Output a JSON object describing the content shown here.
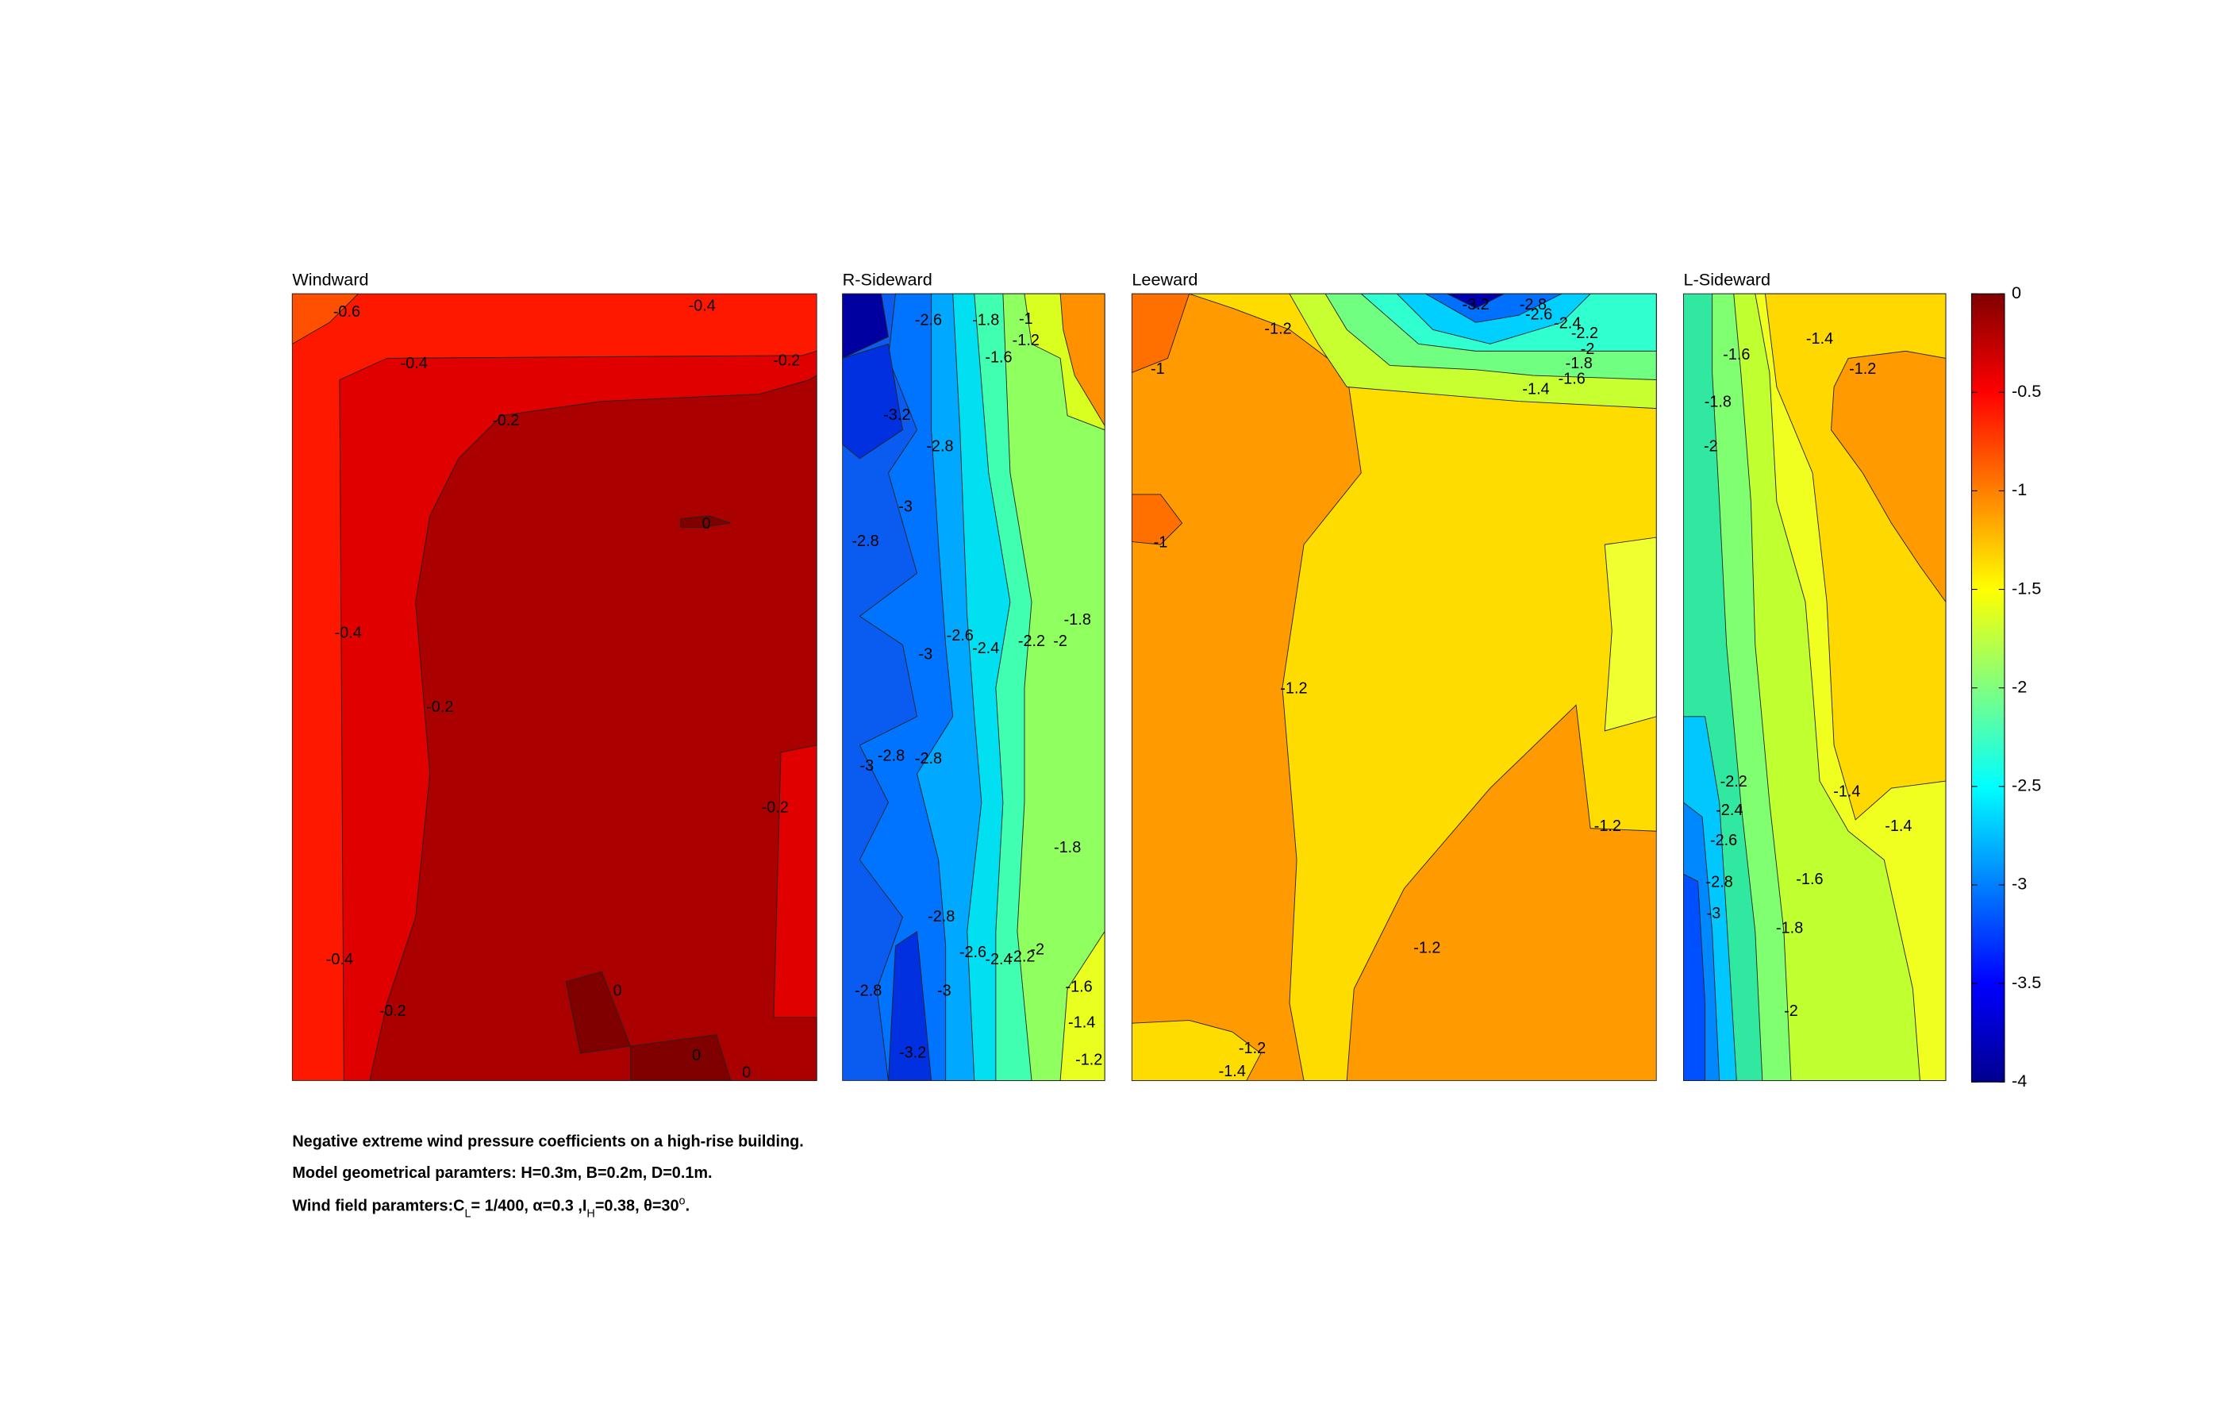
{
  "chart_data": {
    "type": "contour",
    "panels": [
      {
        "title": "Windward",
        "contour_labels": [
          "-0.6",
          "-0.4",
          "-0.4",
          "-0.2",
          "-0.2",
          "0",
          "-0.4",
          "-0.2",
          "-0.2",
          "-0.4",
          "-0.2",
          "0",
          "0",
          "0"
        ]
      },
      {
        "title": "R-Sideward",
        "contour_labels": [
          "-3.2",
          "-2.8",
          "-3",
          "-2.8",
          "-3",
          "-2.6",
          "-2.4",
          "-2.2",
          "-2",
          "-1.8",
          "-3",
          "-2.8",
          "-2.8",
          "-1.8",
          "-2.8",
          "-2.6",
          "-2.4",
          "-2.2",
          "-2",
          "-2.8",
          "-3",
          "-1.6",
          "-1.4",
          "-3.2",
          "-1.2",
          "-2.6",
          "-1.8",
          "-1",
          "-1.2",
          "-1.6"
        ]
      },
      {
        "title": "Leeward",
        "contour_labels": [
          "-1.2",
          "-1",
          "-1",
          "-1.2",
          "-1.2",
          "-1.2",
          "-1.2",
          "-1.4",
          "-3.2",
          "-2.8",
          "-2.6",
          "-2.4",
          "-2.2",
          "-2",
          "-1.8",
          "-1.6",
          "-1.4"
        ]
      },
      {
        "title": "L-Sideward",
        "contour_labels": [
          "-1.6",
          "-1.4",
          "-1.2",
          "-1.8",
          "-2",
          "-2.2",
          "-2.4",
          "-2.6",
          "-2.8",
          "-3",
          "-1.4",
          "-1.4",
          "-1.6",
          "-1.8",
          "-2"
        ]
      }
    ],
    "colorbar": {
      "lim": [
        -4,
        0
      ],
      "ticks": [
        0,
        -0.5,
        -1,
        -1.5,
        -2,
        -2.5,
        -3,
        -3.5,
        -4
      ]
    },
    "caption": [
      "Negative extreme wind pressure coefficients on a high-rise building.",
      "Model geometrical paramters: H=0.3m, B=0.2m, D=0.1m.",
      [
        "Wind field paramters:C",
        "L",
        "= 1/400, α=0.3 ,I",
        "H",
        "=0.38, θ=30",
        "o",
        "."
      ]
    ]
  }
}
